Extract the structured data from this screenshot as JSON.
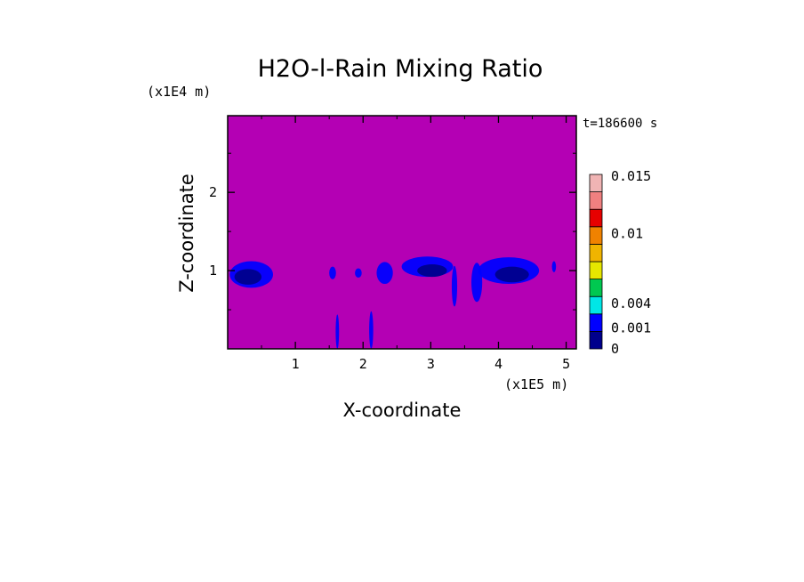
{
  "chart_data": {
    "type": "heatmap",
    "title": "H2O-l-Rain Mixing Ratio",
    "xlabel": "X-coordinate",
    "ylabel": "Z-coordinate",
    "x_unit": "(x1E5 m)",
    "y_unit": "(x1E4 m)",
    "time_label": "t=186600 s",
    "xlim": [
      0,
      5.15
    ],
    "ylim": [
      0,
      2.98
    ],
    "x_ticks": [
      1,
      2,
      3,
      4,
      5
    ],
    "y_ticks": [
      1,
      2
    ],
    "background_level_color": "#b400b4",
    "colorbar": {
      "labels": [
        {
          "text": "0.015",
          "value": 0.015
        },
        {
          "text": "0.01",
          "value": 0.01
        },
        {
          "text": "0.004",
          "value": 0.004
        },
        {
          "text": "0.001",
          "value": 0.001
        },
        {
          "text": "0",
          "value": 0
        }
      ],
      "colors": [
        "#00008c",
        "#0000ff",
        "#00e6e6",
        "#00c850",
        "#e6e600",
        "#f0b400",
        "#f08200",
        "#e60000",
        "#f08080",
        "#f0b4b4"
      ]
    },
    "rain_patches": [
      {
        "x": 0.35,
        "z": 0.95,
        "rx": 0.32,
        "rz": 0.17,
        "color": "#0000ff"
      },
      {
        "x": 1.55,
        "z": 0.97,
        "rx": 0.05,
        "rz": 0.08,
        "color": "#0000ff"
      },
      {
        "x": 1.93,
        "z": 0.97,
        "rx": 0.05,
        "rz": 0.06,
        "color": "#0000ff"
      },
      {
        "x": 2.32,
        "z": 0.97,
        "rx": 0.12,
        "rz": 0.14,
        "color": "#0000ff"
      },
      {
        "x": 2.95,
        "z": 1.05,
        "rx": 0.38,
        "rz": 0.13,
        "color": "#0000ff"
      },
      {
        "x": 3.35,
        "z": 0.8,
        "rx": 0.04,
        "rz": 0.26,
        "color": "#0000ff"
      },
      {
        "x": 3.68,
        "z": 0.85,
        "rx": 0.08,
        "rz": 0.25,
        "color": "#0000ff"
      },
      {
        "x": 4.15,
        "z": 1.0,
        "rx": 0.45,
        "rz": 0.17,
        "color": "#0000ff"
      },
      {
        "x": 4.82,
        "z": 1.05,
        "rx": 0.03,
        "rz": 0.07,
        "color": "#0000ff"
      },
      {
        "x": 1.62,
        "z": 0.22,
        "rx": 0.025,
        "rz": 0.22,
        "color": "#0000ff"
      },
      {
        "x": 2.12,
        "z": 0.24,
        "rx": 0.03,
        "rz": 0.24,
        "color": "#0000ff"
      },
      {
        "x": 0.3,
        "z": 0.92,
        "rx": 0.2,
        "rz": 0.1,
        "color": "#00008c"
      },
      {
        "x": 3.02,
        "z": 1.0,
        "rx": 0.22,
        "rz": 0.08,
        "color": "#00008c"
      },
      {
        "x": 4.2,
        "z": 0.95,
        "rx": 0.25,
        "rz": 0.1,
        "color": "#00008c"
      }
    ]
  }
}
